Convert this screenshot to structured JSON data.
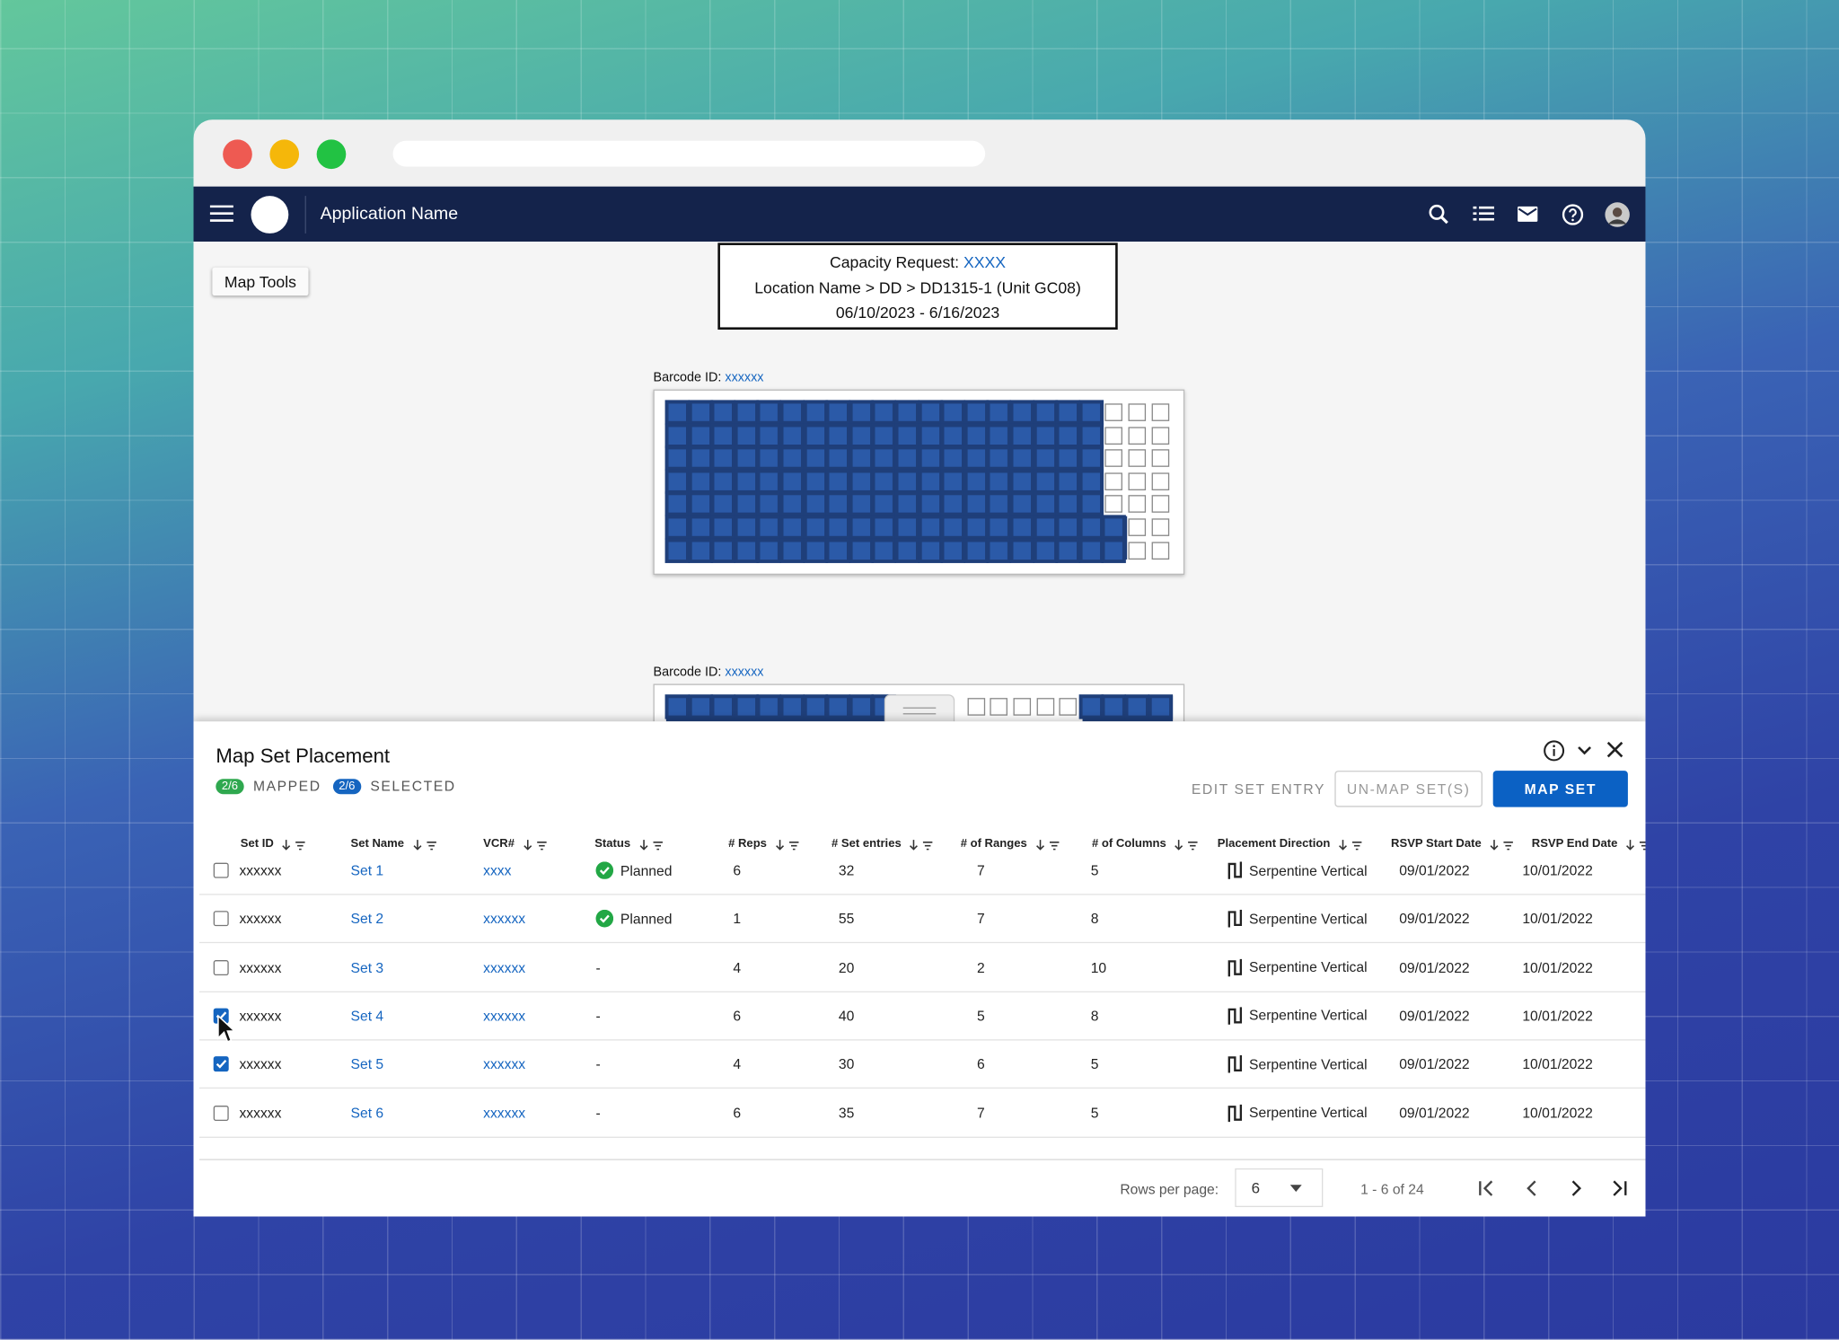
{
  "nav": {
    "app_name": "Application Name"
  },
  "map_tools": "Map Tools",
  "request": {
    "label": "Capacity Request:",
    "id": "XXXX",
    "location": "Location Name > DD > DD1315-1 (Unit GC08)",
    "dates": "06/10/2023 - 6/16/2023"
  },
  "plots": [
    {
      "label": "Barcode ID:",
      "id": "xxxxxx"
    },
    {
      "label": "Barcode ID:",
      "id": "xxxxxx"
    }
  ],
  "panel": {
    "title": "Map Set Placement",
    "mapped_count": "2/6",
    "mapped_label": "MAPPED",
    "selected_count": "2/6",
    "selected_label": "SELECTED",
    "actions": [
      "EDIT SET ENTRY",
      "UN-MAP SET(S)",
      "MAP SET"
    ],
    "columns": [
      "Set ID",
      "Set Name",
      "VCR#",
      "Status",
      "# Reps",
      "# Set entries",
      "# of Ranges",
      "# of Columns",
      "Placement Direction",
      "RSVP Start Date",
      "RSVP End Date"
    ],
    "rows": [
      {
        "checked": false,
        "cells": [
          "xxxxxx",
          "Set 1",
          "xxxx",
          "Planned",
          "6",
          "32",
          "7",
          "5",
          "Serpentine Vertical",
          "09/01/2022",
          "10/01/2022"
        ]
      },
      {
        "checked": false,
        "cells": [
          "xxxxxx",
          "Set 2",
          "xxxxxx",
          "Planned",
          "1",
          "55",
          "7",
          "8",
          "Serpentine Vertical",
          "09/01/2022",
          "10/01/2022"
        ]
      },
      {
        "checked": false,
        "cells": [
          "xxxxxx",
          "Set 3",
          "xxxxxx",
          "-",
          "4",
          "20",
          "2",
          "10",
          "Serpentine Vertical",
          "09/01/2022",
          "10/01/2022"
        ]
      },
      {
        "checked": true,
        "cells": [
          "xxxxxx",
          "Set 4",
          "xxxxxx",
          "-",
          "6",
          "40",
          "5",
          "8",
          "Serpentine Vertical",
          "09/01/2022",
          "10/01/2022"
        ]
      },
      {
        "checked": true,
        "cells": [
          "xxxxxx",
          "Set 5",
          "xxxxxx",
          "-",
          "4",
          "30",
          "6",
          "5",
          "Serpentine Vertical",
          "09/01/2022",
          "10/01/2022"
        ]
      },
      {
        "checked": false,
        "cells": [
          "xxxxxx",
          "Set 6",
          "xxxxxx",
          "-",
          "6",
          "35",
          "7",
          "5",
          "Serpentine Vertical",
          "09/01/2022",
          "10/01/2022"
        ]
      }
    ],
    "footer": {
      "rows_per_page_label": "Rows per page:",
      "rows_per_page": "6",
      "range": "1 - 6 of 24"
    }
  }
}
